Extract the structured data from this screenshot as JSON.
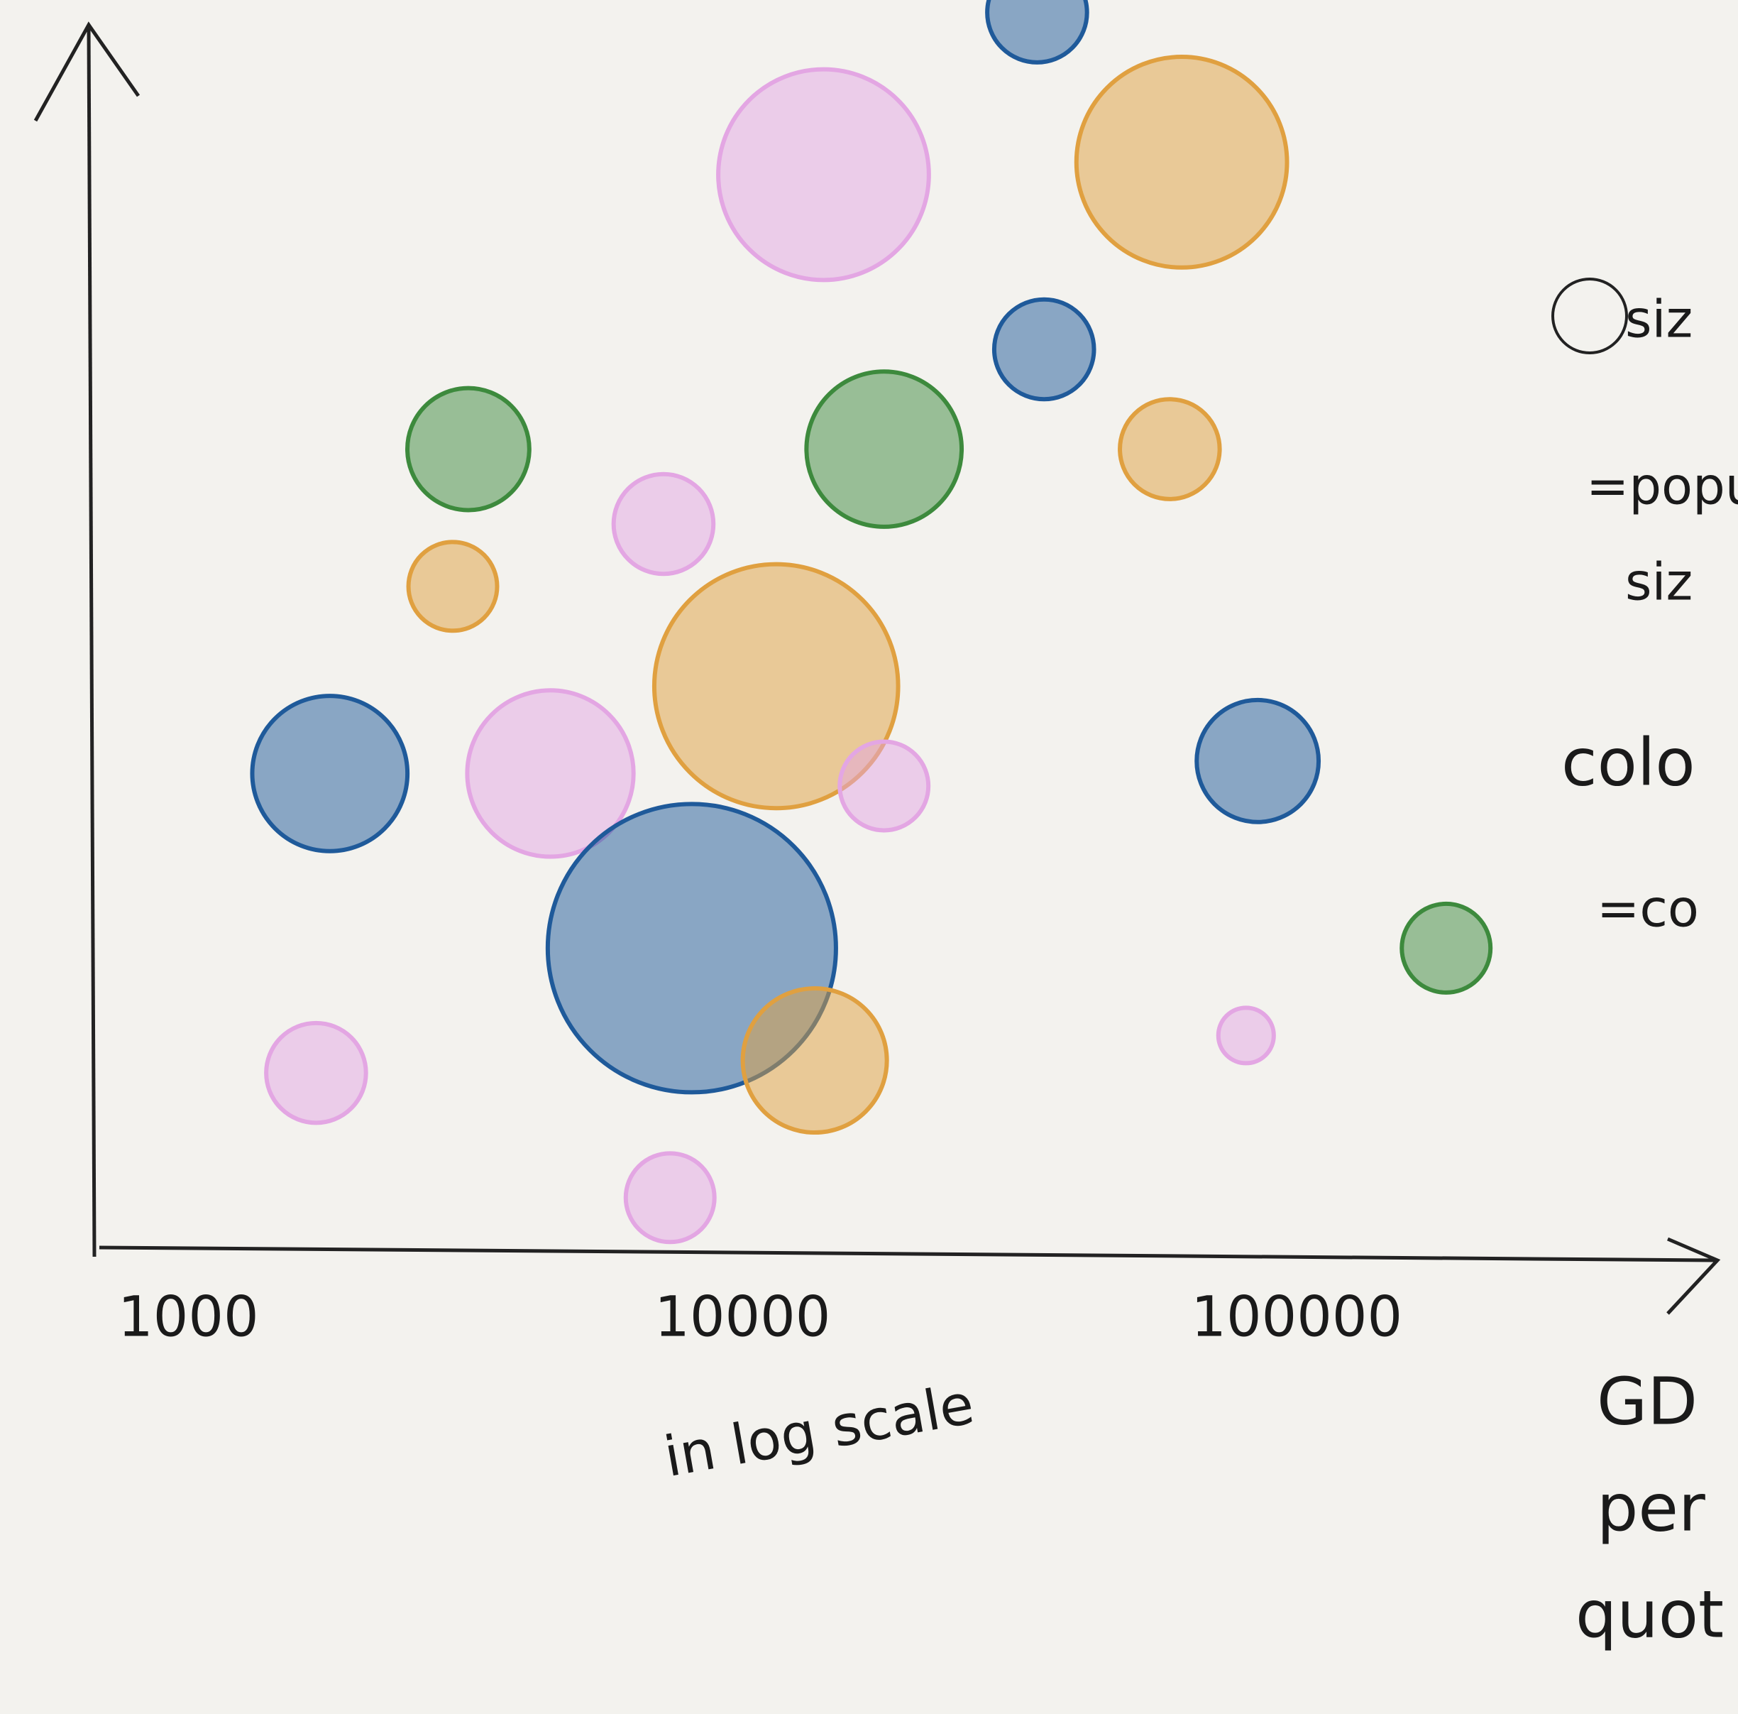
{
  "chart_data": {
    "type": "bubble",
    "x": [
      34000,
      14000,
      62000,
      35000,
      3200,
      18000,
      59000,
      7200,
      3000,
      11500,
      1800,
      4500,
      85000,
      18000,
      8100,
      186000,
      13500,
      1700,
      81000,
      7400
    ],
    "y": [
      99,
      86,
      87,
      72,
      64,
      64,
      64,
      58,
      53,
      45,
      38,
      38,
      39,
      37,
      24,
      24,
      15,
      14,
      17,
      4
    ],
    "sizes": [
      45,
      95,
      95,
      45,
      55,
      70,
      45,
      45,
      40,
      110,
      70,
      75,
      55,
      40,
      130,
      40,
      65,
      45,
      25,
      40
    ],
    "colors": [
      "#1f5a9a",
      "#e3a6e3",
      "#e0a040",
      "#1f5a9a",
      "#3d8a3d",
      "#3d8a3d",
      "#e0a040",
      "#e3a6e3",
      "#e0a040",
      "#e0a040",
      "#1f5a9a",
      "#e3a6e3",
      "#1f5a9a",
      "#e3a6e3",
      "#1f5a9a",
      "#3d8a3d",
      "#e0a040",
      "#e3a6e3",
      "#e3a6e3",
      "#e3a6e3"
    ],
    "xscale": "log",
    "xlim": [
      700,
      600000
    ],
    "xticks": [
      1000,
      10000,
      100000
    ],
    "ylim": [
      0,
      100
    ],
    "xlabel": "in log scale",
    "notes": [
      "siz",
      "=popu",
      "siz",
      "colo",
      "=co",
      "GD",
      "per",
      "quot"
    ]
  }
}
